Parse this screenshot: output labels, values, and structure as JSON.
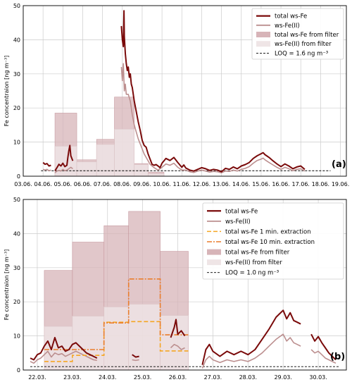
{
  "colors": {
    "total": "#7a0a0a",
    "fe2": "#bc8f8f",
    "filter_total": "#d7b4b8",
    "filter_fe2": "#efe5e6",
    "ext1": "#f5a623",
    "ext10": "#ea7d2c",
    "loq": "#000000",
    "grid": "#cccccc"
  },
  "chart_data": [
    {
      "type": "line",
      "panel_label": "(a)",
      "ylabel": "Fe concentraion [ng m⁻³]",
      "ylim": [
        0,
        50
      ],
      "yticks": [
        0,
        10,
        20,
        30,
        40,
        50
      ],
      "xlim": [
        3,
        19.3
      ],
      "xticks": [
        3,
        4,
        5,
        6,
        7,
        8,
        9,
        10,
        11,
        12,
        13,
        14,
        15,
        16,
        17,
        18,
        19
      ],
      "xticklabels": [
        "03.06.",
        "04.06.",
        "05.06.",
        "06.06.",
        "07.06.",
        "08.06.",
        "09.06.",
        "10.06.",
        "11.06.",
        "12.06.",
        "13.06.",
        "14.06.",
        "15.06.",
        "16.06.",
        "17.06.",
        "18.06.",
        "19.06."
      ],
      "grid": true,
      "legend_position": "top-right",
      "legend": [
        "total ws-Fe",
        "ws-Fe(II)",
        "total ws-Fe from filter",
        "ws-Fe(II) from filter",
        "LOQ = 1.6 ng m⁻³"
      ],
      "loq": 1.6,
      "loq_range": [
        3.9,
        18.5
      ],
      "filter_total": [
        [
          4.6,
          5.7,
          18.5
        ],
        [
          5.7,
          6.7,
          4.8
        ],
        [
          6.7,
          7.6,
          10.8
        ],
        [
          7.6,
          8.6,
          23.2
        ],
        [
          8.6,
          9.3,
          3.7
        ],
        [
          9.3,
          10.1,
          1.2
        ]
      ],
      "filter_fe2": [
        [
          4.6,
          5.7,
          8.8
        ],
        [
          5.7,
          6.7,
          4.2
        ],
        [
          6.7,
          7.6,
          9.3
        ],
        [
          7.6,
          8.6,
          13.8
        ],
        [
          8.6,
          9.3,
          3.4
        ],
        [
          9.3,
          10.1,
          0.7
        ]
      ],
      "series": [
        {
          "name": "total ws-Fe",
          "segments": [
            {
              "x": [
                4.0,
                4.1,
                4.2,
                4.3,
                4.4
              ],
              "y": [
                4.0,
                3.5,
                3.7,
                3.0,
                3.2
              ]
            },
            {
              "x": [
                4.6,
                4.7,
                4.8,
                4.9,
                5.0,
                5.1,
                5.2,
                5.25,
                5.3,
                5.35,
                5.4,
                5.5
              ],
              "y": [
                1.6,
                2.5,
                3.5,
                3.0,
                3.8,
                2.8,
                3.2,
                5.5,
                7.5,
                9.0,
                6.0,
                4.5
              ]
            },
            {
              "x": [
                7.95,
                8.0,
                8.05,
                8.08,
                8.1,
                8.15,
                8.2,
                8.25,
                8.3,
                8.35,
                8.4,
                8.45,
                8.5,
                8.55,
                8.6,
                8.7,
                8.8,
                8.9,
                9.0,
                9.1,
                9.2,
                9.3,
                9.4,
                9.5,
                9.6,
                9.7,
                9.8,
                9.9,
                10.0,
                10.2,
                10.4,
                10.6,
                10.8,
                11.0,
                11.1,
                11.2,
                11.4,
                11.6,
                11.8,
                12.0,
                12.2,
                12.4,
                12.6,
                12.8,
                13.0,
                13.2,
                13.4,
                13.6,
                13.8,
                14.0,
                14.2,
                14.4,
                14.6,
                14.8,
                15.0,
                15.1,
                15.2,
                15.4,
                15.6,
                15.8,
                16.0,
                16.2,
                16.4,
                16.6,
                16.8,
                17.0,
                17.2
              ],
              "y": [
                44,
                40,
                38,
                48.5,
                41,
                36,
                33,
                31,
                32,
                29,
                30,
                27,
                26,
                24,
                22,
                19,
                16,
                13.5,
                10.5,
                9.0,
                8.5,
                6.5,
                5.0,
                3.5,
                3.2,
                3.4,
                3.0,
                2.5,
                3.8,
                5.2,
                4.6,
                5.5,
                4.0,
                2.6,
                3.3,
                2.4,
                1.8,
                1.5,
                2.0,
                2.5,
                2.2,
                1.7,
                2.0,
                1.8,
                1.3,
                2.3,
                2.0,
                2.7,
                2.2,
                3.0,
                3.4,
                4.0,
                5.2,
                6.0,
                6.6,
                6.9,
                6.3,
                5.5,
                4.5,
                3.6,
                2.8,
                3.6,
                3.0,
                2.2,
                2.7,
                3.0,
                2.0
              ]
            }
          ]
        },
        {
          "name": "ws-Fe(II)",
          "segments": [
            {
              "x": [
                4.0,
                4.1,
                4.2,
                4.3,
                4.4
              ],
              "y": [
                2.0,
                1.8,
                2.0,
                1.6,
                1.8
              ]
            },
            {
              "x": [
                4.6,
                4.7,
                4.8,
                4.9,
                5.0,
                5.1,
                5.2,
                5.3,
                5.4,
                5.5
              ],
              "y": [
                1.0,
                1.5,
                1.7,
                1.5,
                2.0,
                1.6,
                1.8,
                2.2,
                2.6,
                2.2
              ]
            },
            {
              "x": [
                7.95,
                8.0,
                8.05,
                8.1,
                8.15,
                8.2,
                8.3,
                8.4,
                8.5,
                8.6,
                8.7,
                8.8,
                8.9,
                9.0,
                9.1,
                9.2,
                9.3,
                9.4,
                9.6,
                9.8,
                10.0,
                10.2,
                10.4,
                10.6,
                10.8,
                11.0,
                11.2,
                11.4,
                11.6,
                11.8,
                12.0,
                12.2,
                12.4,
                12.6,
                12.8,
                13.0,
                13.2,
                13.4,
                13.6,
                13.8,
                14.0,
                14.2,
                14.4,
                14.6,
                14.8,
                15.0,
                15.1,
                15.2,
                15.4,
                15.6,
                15.8,
                16.0,
                16.2,
                16.4,
                16.6,
                16.8,
                17.0,
                17.2
              ],
              "y": [
                32,
                28,
                33,
                25,
                27,
                24,
                24,
                22,
                18,
                15,
                13,
                11,
                9.5,
                8.0,
                6.5,
                5.5,
                4.5,
                3.5,
                2.5,
                1.8,
                2.6,
                3.6,
                3.2,
                3.8,
                2.6,
                1.8,
                1.8,
                1.3,
                1.1,
                1.5,
                1.8,
                1.5,
                1.2,
                1.4,
                1.3,
                1.0,
                1.5,
                1.4,
                1.8,
                1.5,
                2.0,
                2.3,
                2.8,
                3.8,
                4.6,
                5.0,
                5.3,
                4.8,
                4.0,
                3.3,
                2.6,
                2.0,
                2.6,
                2.2,
                1.6,
                2.0,
                2.2,
                1.5
              ]
            }
          ]
        }
      ]
    },
    {
      "type": "line",
      "panel_label": "(b)",
      "ylabel": "Fe concentraion [ng m⁻³]",
      "ylim": [
        0,
        50
      ],
      "yticks": [
        0,
        10,
        20,
        30,
        40,
        50
      ],
      "xlim": [
        21.6,
        30.8
      ],
      "xticks": [
        22,
        23,
        24,
        25,
        26,
        27,
        28,
        29,
        30
      ],
      "xticklabels": [
        "22.03.",
        "23.03.",
        "24.03.",
        "25.03.",
        "26.03.",
        "27.03.",
        "28.03.",
        "29.03.",
        "30.03."
      ],
      "grid": true,
      "legend_position": "top-right",
      "legend": [
        "total ws-Fe",
        "ws-Fe(II)",
        "total ws-Fe 1 min. extraction",
        "total ws-Fe 10 min. extraction",
        "total ws-Fe from filter",
        "ws-Fe(II) from filter",
        "LOQ = 1.0 ng m⁻³"
      ],
      "loq": 1.0,
      "loq_range": [
        21.8,
        30.6
      ],
      "filter_total": [
        [
          22.2,
          23.0,
          29.2
        ],
        [
          23.0,
          23.9,
          37.5
        ],
        [
          23.9,
          24.6,
          42.3
        ],
        [
          24.6,
          25.5,
          46.5
        ],
        [
          25.5,
          26.3,
          34.8
        ]
      ],
      "filter_fe2": [
        [
          22.2,
          23.0,
          12.8
        ],
        [
          23.0,
          23.9,
          15.8
        ],
        [
          23.9,
          24.6,
          18.5
        ],
        [
          24.6,
          25.5,
          19.3
        ],
        [
          25.5,
          26.3,
          16.0
        ]
      ],
      "series": [
        {
          "name": "total ws-Fe",
          "segments": [
            {
              "x": [
                21.8,
                21.9,
                22.0,
                22.1,
                22.2,
                22.3,
                22.4,
                22.5,
                22.6,
                22.7,
                22.8,
                22.9,
                23.0,
                23.1,
                23.2,
                23.3,
                23.4,
                23.5,
                23.6,
                23.7
              ],
              "y": [
                3.5,
                3.0,
                4.5,
                5.0,
                7.0,
                8.5,
                6.0,
                9.5,
                6.5,
                7.0,
                5.5,
                6.0,
                7.5,
                8.0,
                7.0,
                6.0,
                5.0,
                4.5,
                4.0,
                3.5
              ]
            },
            {
              "x": [
                24.7,
                24.8,
                24.9
              ],
              "y": [
                4.5,
                3.8,
                4.0
              ]
            },
            {
              "x": [
                25.8,
                25.9,
                25.95,
                26.0,
                26.1,
                26.2
              ],
              "y": [
                9.5,
                12.5,
                14.8,
                10.5,
                11.5,
                10.0
              ]
            },
            {
              "x": [
                26.7,
                26.8,
                26.9,
                27.0,
                27.2,
                27.4,
                27.6,
                27.8,
                28.0,
                28.2,
                28.4,
                28.6,
                28.8,
                28.9,
                29.0,
                29.1,
                29.2,
                29.3,
                29.4,
                29.5
              ],
              "y": [
                1.5,
                6.0,
                7.5,
                5.5,
                4.0,
                5.5,
                4.5,
                5.5,
                4.5,
                6.0,
                9.0,
                12.0,
                15.5,
                16.5,
                17.5,
                15.0,
                16.8,
                14.5,
                14.0,
                13.5
              ]
            },
            {
              "x": [
                29.8,
                29.9,
                30.0,
                30.1,
                30.2,
                30.3,
                30.4,
                30.5
              ],
              "y": [
                10.5,
                8.5,
                9.8,
                8.0,
                6.5,
                5.0,
                4.0,
                3.0
              ]
            }
          ]
        },
        {
          "name": "ws-Fe(II)",
          "segments": [
            {
              "x": [
                21.8,
                21.9,
                22.0,
                22.1,
                22.2,
                22.3,
                22.4,
                22.5,
                22.6,
                22.7,
                22.8,
                22.9,
                23.0,
                23.1,
                23.2,
                23.3,
                23.4,
                23.5,
                23.6,
                23.7
              ],
              "y": [
                2.5,
                2.0,
                3.0,
                3.5,
                4.5,
                5.5,
                3.8,
                5.0,
                4.5,
                4.8,
                4.0,
                4.5,
                5.0,
                5.5,
                5.0,
                4.5,
                4.0,
                3.5,
                3.0,
                2.8
              ]
            },
            {
              "x": [
                24.7,
                24.8,
                24.9
              ],
              "y": [
                3.0,
                2.8,
                3.0
              ]
            },
            {
              "x": [
                25.8,
                25.9,
                26.0,
                26.1,
                26.2
              ],
              "y": [
                6.5,
                7.5,
                7.0,
                6.0,
                6.5
              ]
            },
            {
              "x": [
                26.7,
                26.8,
                26.9,
                27.0,
                27.2,
                27.4,
                27.6,
                27.8,
                28.0,
                28.2,
                28.4,
                28.6,
                28.8,
                29.0,
                29.1,
                29.2,
                29.3,
                29.4,
                29.5
              ],
              "y": [
                0.5,
                3.0,
                4.0,
                3.0,
                2.2,
                3.0,
                2.5,
                3.0,
                2.5,
                3.5,
                5.0,
                7.0,
                9.0,
                10.5,
                8.5,
                9.5,
                8.0,
                7.5,
                7.0
              ]
            },
            {
              "x": [
                29.8,
                29.9,
                30.0,
                30.1,
                30.2,
                30.3,
                30.4,
                30.5
              ],
              "y": [
                6.0,
                5.0,
                5.5,
                4.5,
                3.5,
                3.0,
                2.5,
                2.0
              ]
            }
          ]
        },
        {
          "name": "total ws-Fe 1 min. extraction",
          "style": "dashed",
          "steps": [
            [
              22.2,
              23.0,
              2.5
            ],
            [
              23.0,
              23.9,
              4.3
            ],
            [
              23.9,
              24.6,
              14.0
            ],
            [
              24.6,
              25.5,
              14.2
            ],
            [
              25.5,
              26.3,
              5.6
            ]
          ]
        },
        {
          "name": "total ws-Fe 10 min. extraction",
          "style": "dashdot",
          "steps": [
            [
              22.2,
              23.0,
              6.0
            ],
            [
              23.0,
              23.9,
              6.0
            ],
            [
              23.9,
              24.6,
              13.8
            ],
            [
              24.6,
              25.5,
              26.7
            ],
            [
              25.5,
              26.3,
              10.3
            ]
          ]
        }
      ]
    }
  ]
}
